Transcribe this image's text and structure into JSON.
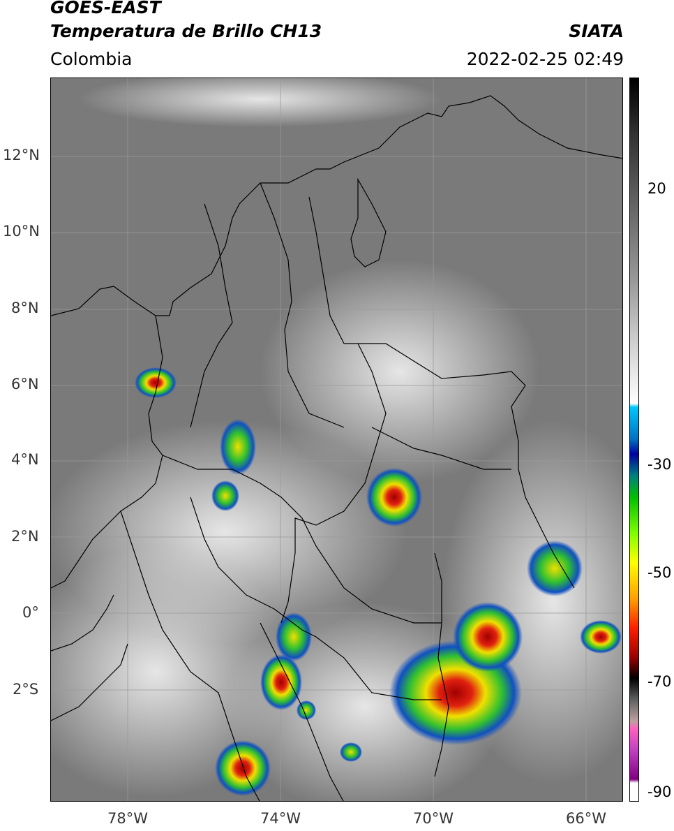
{
  "header": {
    "satellite": "GOES-EAST",
    "product": "Temperatura de Brillo CH13",
    "region": "Colombia",
    "agency": "SIATA",
    "timestamp": "2022-02-25 02:49"
  },
  "map": {
    "lat_labels": [
      "12°N",
      "10°N",
      "8°N",
      "6°N",
      "4°N",
      "2°N",
      "0°",
      "2°S"
    ],
    "lon_labels": [
      "78°W",
      "74°W",
      "70°W",
      "66°W"
    ],
    "colors": {
      "cloud_top_warm": "#7a7a7a",
      "cloud_cold": "#d8d8d8",
      "convection_green": "#30c030",
      "convection_yellow": "#f0e000",
      "convection_red": "#d01010",
      "convection_blue": "#1050c0",
      "borders": "#000000"
    }
  },
  "colorbar": {
    "ticks": [
      "20",
      "-30",
      "-50",
      "-70",
      "-90"
    ]
  }
}
